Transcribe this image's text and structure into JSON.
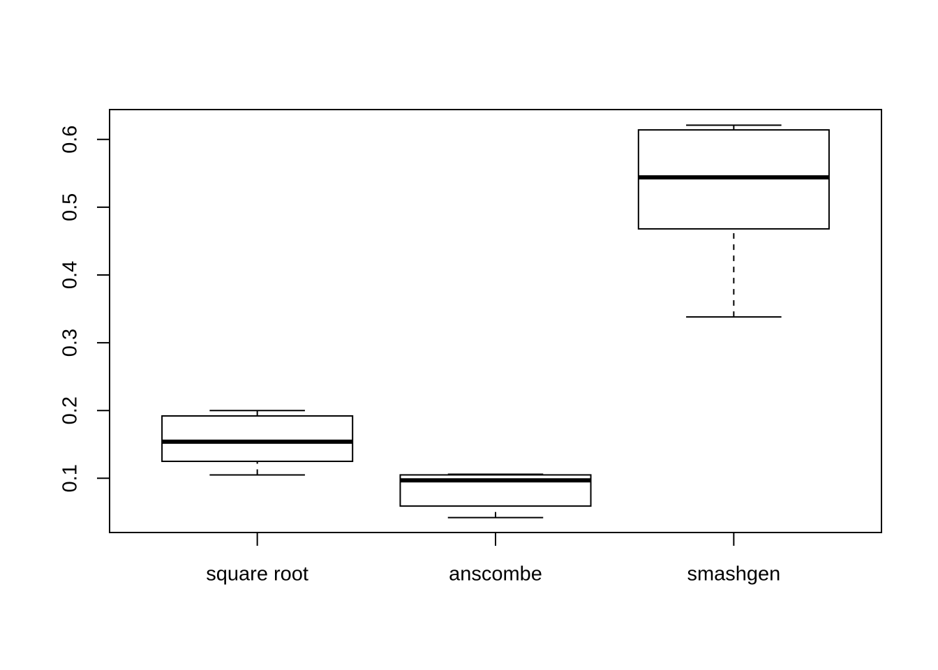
{
  "chart_data": {
    "type": "boxplot",
    "categories": [
      "square root",
      "anscombe",
      "smashgen"
    ],
    "boxes": [
      {
        "min": 0.105,
        "q1": 0.125,
        "median": 0.154,
        "q3": 0.192,
        "max": 0.2
      },
      {
        "min": 0.042,
        "q1": 0.059,
        "median": 0.097,
        "q3": 0.105,
        "max": 0.106
      },
      {
        "min": 0.338,
        "q1": 0.468,
        "median": 0.544,
        "q3": 0.614,
        "max": 0.621
      }
    ],
    "ylim": [
      0.02,
      0.644
    ],
    "yticks": [
      0.1,
      0.2,
      0.3,
      0.4,
      0.5,
      0.6
    ]
  }
}
